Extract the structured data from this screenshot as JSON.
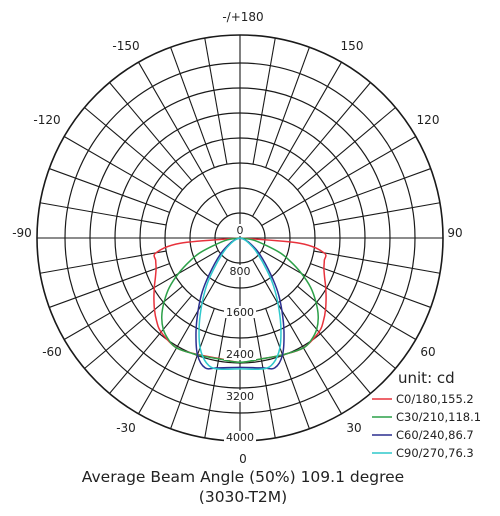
{
  "chart_data": {
    "type": "polar-line",
    "angle_labels": [
      {
        "angle": 180,
        "text": "-/+180"
      },
      {
        "angle": 150,
        "text": "150"
      },
      {
        "angle": -150,
        "text": "-150"
      },
      {
        "angle": 120,
        "text": "120"
      },
      {
        "angle": -120,
        "text": "-120"
      },
      {
        "angle": 90,
        "text": "90"
      },
      {
        "angle": -90,
        "text": "-90"
      },
      {
        "angle": 60,
        "text": "60"
      },
      {
        "angle": -60,
        "text": "-60"
      },
      {
        "angle": 30,
        "text": "30"
      },
      {
        "angle": -30,
        "text": "-30"
      },
      {
        "angle": 0,
        "text": "0"
      }
    ],
    "radial_ticks": [
      0,
      800,
      1600,
      2400,
      3200,
      4000
    ],
    "radial_max": 4000,
    "unit_label": "unit: cd",
    "series": [
      {
        "name": "C0/180,155.2",
        "color": "#e8323c",
        "points": [
          [
            -90,
            0
          ],
          [
            -85,
            1180
          ],
          [
            -80,
            1680
          ],
          [
            -75,
            1720
          ],
          [
            -70,
            1760
          ],
          [
            -65,
            1840
          ],
          [
            -60,
            1950
          ],
          [
            -55,
            2070
          ],
          [
            -50,
            2200
          ],
          [
            -45,
            2320
          ],
          [
            -40,
            2420
          ],
          [
            -30,
            2500
          ],
          [
            -20,
            2440
          ],
          [
            -10,
            2410
          ],
          [
            0,
            2450
          ],
          [
            10,
            2420
          ],
          [
            20,
            2450
          ],
          [
            30,
            2500
          ],
          [
            40,
            2420
          ],
          [
            45,
            2320
          ],
          [
            50,
            2200
          ],
          [
            55,
            2070
          ],
          [
            60,
            1950
          ],
          [
            65,
            1840
          ],
          [
            70,
            1760
          ],
          [
            75,
            1720
          ],
          [
            80,
            1680
          ],
          [
            85,
            1180
          ],
          [
            90,
            0
          ]
        ]
      },
      {
        "name": "C30/210,118.1",
        "color": "#2ca048",
        "points": [
          [
            -90,
            0
          ],
          [
            -80,
            300
          ],
          [
            -70,
            820
          ],
          [
            -65,
            1100
          ],
          [
            -60,
            1400
          ],
          [
            -55,
            1700
          ],
          [
            -50,
            1950
          ],
          [
            -45,
            2180
          ],
          [
            -40,
            2350
          ],
          [
            -35,
            2450
          ],
          [
            -30,
            2500
          ],
          [
            -20,
            2450
          ],
          [
            -10,
            2420
          ],
          [
            0,
            2450
          ],
          [
            10,
            2420
          ],
          [
            20,
            2450
          ],
          [
            30,
            2500
          ],
          [
            35,
            2450
          ],
          [
            40,
            2350
          ],
          [
            45,
            2180
          ],
          [
            50,
            1950
          ],
          [
            55,
            1700
          ],
          [
            60,
            1400
          ],
          [
            65,
            1100
          ],
          [
            70,
            820
          ],
          [
            80,
            300
          ],
          [
            90,
            0
          ]
        ]
      },
      {
        "name": "C60/240,86.7",
        "color": "#2b2f8f",
        "points": [
          [
            -90,
            0
          ],
          [
            -70,
            110
          ],
          [
            -60,
            260
          ],
          [
            -50,
            520
          ],
          [
            -40,
            950
          ],
          [
            -35,
            1300
          ],
          [
            -30,
            1650
          ],
          [
            -25,
            2050
          ],
          [
            -20,
            2450
          ],
          [
            -15,
            2650
          ],
          [
            -10,
            2600
          ],
          [
            0,
            2550
          ],
          [
            10,
            2600
          ],
          [
            15,
            2650
          ],
          [
            20,
            2450
          ],
          [
            25,
            2050
          ],
          [
            30,
            1650
          ],
          [
            35,
            1300
          ],
          [
            40,
            950
          ],
          [
            50,
            520
          ],
          [
            60,
            260
          ],
          [
            70,
            110
          ],
          [
            90,
            0
          ]
        ]
      },
      {
        "name": "C90/270,76.3",
        "color": "#2ec8cc",
        "points": [
          [
            -90,
            0
          ],
          [
            -70,
            90
          ],
          [
            -60,
            200
          ],
          [
            -50,
            420
          ],
          [
            -40,
            820
          ],
          [
            -35,
            1150
          ],
          [
            -30,
            1500
          ],
          [
            -25,
            1900
          ],
          [
            -20,
            2300
          ],
          [
            -15,
            2550
          ],
          [
            -10,
            2620
          ],
          [
            0,
            2580
          ],
          [
            10,
            2620
          ],
          [
            15,
            2550
          ],
          [
            20,
            2300
          ],
          [
            25,
            1900
          ],
          [
            30,
            1500
          ],
          [
            35,
            1150
          ],
          [
            40,
            820
          ],
          [
            50,
            420
          ],
          [
            60,
            200
          ],
          [
            70,
            90
          ],
          [
            90,
            0
          ]
        ]
      }
    ],
    "caption_line1": "Average Beam Angle (50%) 109.1 degree",
    "caption_line2": "(3030-T2M)"
  }
}
